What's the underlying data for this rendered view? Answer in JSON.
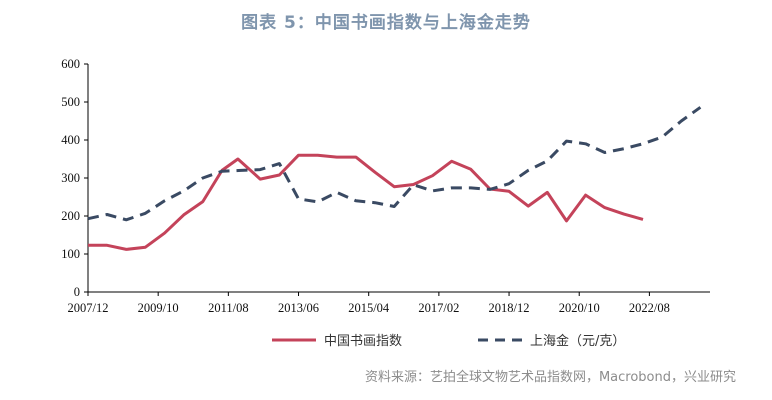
{
  "header": {
    "title": "图表 5：中国书画指数与上海金走势"
  },
  "footer": {
    "source": "资料来源：艺拍全球文物艺术品指数网，Macrobond，兴业研究"
  },
  "colors": {
    "painting": "#c4435a",
    "gold": "#3a4a63",
    "title": "#7f95ad"
  },
  "chart_data": {
    "type": "line",
    "title": "",
    "xlabel": "",
    "ylabel": "",
    "ylim": [
      0,
      600
    ],
    "yticks": [
      0,
      100,
      200,
      300,
      400,
      500,
      600
    ],
    "xticks": [
      "2007/12",
      "2009/10",
      "2011/08",
      "2013/06",
      "2015/04",
      "2017/02",
      "2018/12",
      "2020/10",
      "2022/08"
    ],
    "grid": false,
    "legend": "bottom-center",
    "series": [
      {
        "name": "中国书画指数",
        "style": "solid",
        "points": [
          [
            "2007/12",
            123
          ],
          [
            "2008/06",
            123
          ],
          [
            "2008/12",
            112
          ],
          [
            "2009/06",
            118
          ],
          [
            "2009/12",
            155
          ],
          [
            "2010/06",
            203
          ],
          [
            "2010/12",
            238
          ],
          [
            "2011/06",
            320
          ],
          [
            "2011/11",
            350
          ],
          [
            "2012/06",
            297
          ],
          [
            "2012/12",
            308
          ],
          [
            "2013/06",
            360
          ],
          [
            "2013/12",
            360
          ],
          [
            "2014/06",
            355
          ],
          [
            "2014/12",
            355
          ],
          [
            "2015/06",
            315
          ],
          [
            "2015/12",
            277
          ],
          [
            "2016/06",
            283
          ],
          [
            "2016/12",
            306
          ],
          [
            "2017/06",
            344
          ],
          [
            "2017/12",
            323
          ],
          [
            "2018/06",
            271
          ],
          [
            "2018/12",
            265
          ],
          [
            "2019/06",
            226
          ],
          [
            "2019/12",
            262
          ],
          [
            "2020/06",
            187
          ],
          [
            "2020/12",
            255
          ],
          [
            "2021/06",
            222
          ],
          [
            "2021/12",
            205
          ],
          [
            "2022/06",
            191
          ]
        ]
      },
      {
        "name": "上海金（元/克）",
        "style": "dashed",
        "points": [
          [
            "2007/12",
            193
          ],
          [
            "2008/06",
            204
          ],
          [
            "2008/12",
            190
          ],
          [
            "2009/06",
            207
          ],
          [
            "2009/12",
            240
          ],
          [
            "2010/06",
            266
          ],
          [
            "2010/12",
            300
          ],
          [
            "2011/06",
            318
          ],
          [
            "2011/12",
            320
          ],
          [
            "2012/06",
            322
          ],
          [
            "2012/12",
            338
          ],
          [
            "2013/06",
            245
          ],
          [
            "2013/12",
            237
          ],
          [
            "2014/06",
            262
          ],
          [
            "2014/12",
            240
          ],
          [
            "2015/06",
            235
          ],
          [
            "2015/12",
            225
          ],
          [
            "2016/06",
            282
          ],
          [
            "2016/12",
            266
          ],
          [
            "2017/06",
            274
          ],
          [
            "2017/12",
            274
          ],
          [
            "2018/06",
            270
          ],
          [
            "2018/12",
            285
          ],
          [
            "2019/06",
            320
          ],
          [
            "2019/12",
            345
          ],
          [
            "2020/06",
            397
          ],
          [
            "2020/12",
            390
          ],
          [
            "2021/06",
            367
          ],
          [
            "2021/12",
            377
          ],
          [
            "2022/06",
            390
          ],
          [
            "2022/12",
            408
          ],
          [
            "2023/06",
            450
          ],
          [
            "2023/12",
            486
          ]
        ]
      }
    ]
  }
}
